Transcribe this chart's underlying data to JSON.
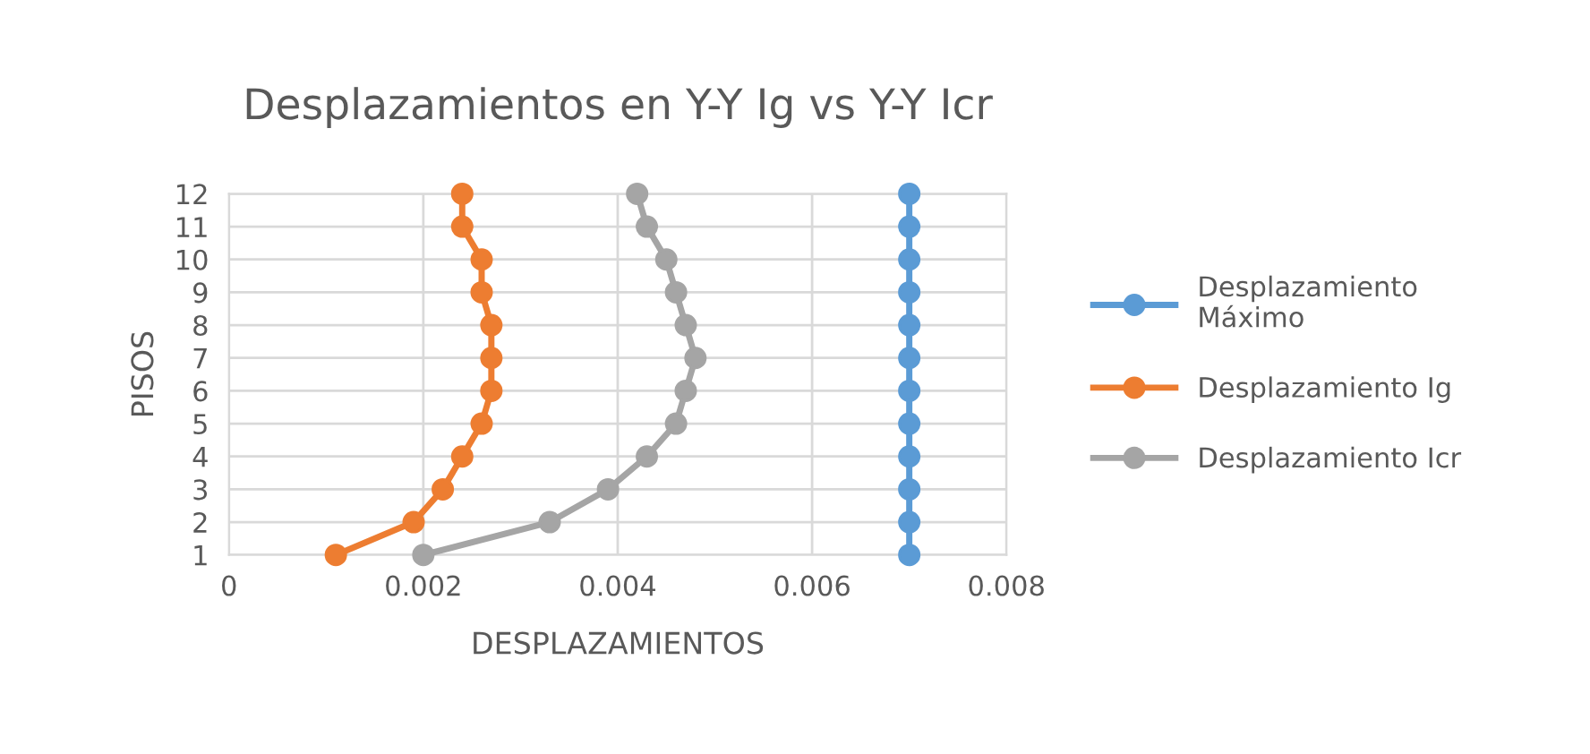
{
  "chart_data": {
    "type": "line",
    "title": "Desplazamientos en Y-Y Ig vs Y-Y Icr",
    "xlabel": "DESPLAZAMIENTOS",
    "ylabel": "PISOS",
    "xlim": [
      0,
      0.008
    ],
    "xticks": [
      0,
      0.002,
      0.004,
      0.006,
      0.008
    ],
    "ylim": [
      1,
      12
    ],
    "yticks": [
      1,
      2,
      3,
      4,
      5,
      6,
      7,
      8,
      9,
      10,
      11,
      12
    ],
    "grid": true,
    "legend": "right",
    "marker": "circle",
    "line_style": "solid",
    "series": [
      {
        "name": "Desplazamiento Máximo",
        "color": "#5b9bd5",
        "x": [
          0.007,
          0.007,
          0.007,
          0.007,
          0.007,
          0.007,
          0.007,
          0.007,
          0.007,
          0.007,
          0.007,
          0.007
        ],
        "values": [
          1,
          2,
          3,
          4,
          5,
          6,
          7,
          8,
          9,
          10,
          11,
          12
        ]
      },
      {
        "name": "Desplazamiento Ig",
        "color": "#ed7d31",
        "x": [
          0.0011,
          0.0019,
          0.0022,
          0.0024,
          0.0026,
          0.0027,
          0.0027,
          0.0027,
          0.0026,
          0.0026,
          0.0024,
          0.0024
        ],
        "values": [
          1,
          2,
          3,
          4,
          5,
          6,
          7,
          8,
          9,
          10,
          11,
          12
        ]
      },
      {
        "name": "Desplazamiento Icr",
        "color": "#a5a5a5",
        "x": [
          0.002,
          0.0033,
          0.0039,
          0.0043,
          0.0046,
          0.0047,
          0.0048,
          0.0047,
          0.0046,
          0.0045,
          0.0043,
          0.0042
        ],
        "values": [
          1,
          2,
          3,
          4,
          5,
          6,
          7,
          8,
          9,
          10,
          11,
          12
        ]
      }
    ]
  }
}
